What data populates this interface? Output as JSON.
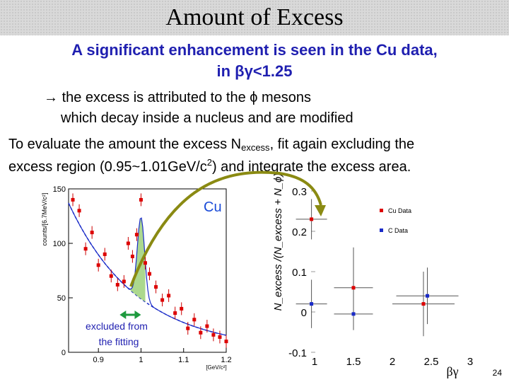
{
  "slide": {
    "title": "Amount of Excess",
    "headline_1": "A significant enhancement is seen in the Cu data,",
    "headline_2": "in βγ<1.25",
    "point_1": "the excess is attributed to the ϕ mesons",
    "point_2": "which decay inside a nucleus and are modified",
    "eval_1a": "To evaluate the amount the excess N",
    "eval_1sub": "excess",
    "eval_1b": ", fit again excluding the",
    "eval_2a": "excess region (0.95~1.01GeV/c",
    "eval_2sup": "2",
    "eval_2b": ") and integrate the excess area.",
    "arrow_glyph": "→",
    "page_number": "24"
  },
  "left_plot": {
    "label": "Cu",
    "ylabel": "counts/[6.7MeV/c²]",
    "xunit": "[GeV/c²]",
    "excluded_note_1": "excluded from",
    "excluded_note_2": "the fitting",
    "yticks": [
      "150",
      "100",
      "50",
      "0"
    ],
    "xticks": [
      "0.9",
      "1",
      "1.1",
      "1.2"
    ]
  },
  "right_plot": {
    "yticks": [
      "0.3",
      "0.2",
      "0.1",
      "0",
      "-0.1"
    ],
    "xticks": [
      "1",
      "1.5",
      "2",
      "2.5",
      "3"
    ],
    "legend": [
      "Cu Data",
      "C  Data"
    ],
    "xlabel": "βγ",
    "ylabel": "N_excess /(N_excess + N_ϕ)"
  },
  "chart_data": [
    {
      "type": "scatter",
      "title": "",
      "xlabel": "",
      "ylabel": "counts/[6.7MeV/c²]",
      "xlim": [
        0.83,
        1.2
      ],
      "ylim": [
        0,
        150
      ],
      "series": [
        {
          "name": "Cu",
          "x": [
            0.84,
            0.855,
            0.87,
            0.885,
            0.9,
            0.915,
            0.93,
            0.945,
            0.96,
            0.97,
            0.98,
            0.99,
            1.0,
            1.01,
            1.02,
            1.035,
            1.05,
            1.065,
            1.08,
            1.095,
            1.11,
            1.125,
            1.14,
            1.155,
            1.17,
            1.185,
            1.2
          ],
          "y": [
            140,
            130,
            95,
            110,
            80,
            90,
            70,
            62,
            65,
            100,
            88,
            108,
            140,
            82,
            72,
            60,
            48,
            52,
            36,
            40,
            22,
            30,
            18,
            24,
            16,
            14,
            10
          ]
        }
      ],
      "annotations": [
        "Cu",
        "excluded from the fitting"
      ]
    },
    {
      "type": "scatter",
      "title": "",
      "xlabel": "βγ",
      "ylabel": "N_excess /(N_excess + N_ϕ)",
      "xlim": [
        0.7,
        3.0
      ],
      "ylim": [
        -0.1,
        0.3
      ],
      "legend_position": "top-right",
      "series": [
        {
          "name": "Cu Data",
          "x": [
            0.96,
            1.5,
            2.4
          ],
          "y": [
            0.23,
            0.06,
            0.02
          ],
          "xerr": [
            0.2,
            0.25,
            0.4
          ],
          "yerr": [
            0.05,
            0.1,
            0.08
          ]
        },
        {
          "name": "C  Data",
          "x": [
            0.96,
            1.5,
            2.45
          ],
          "y": [
            0.02,
            -0.005,
            0.04
          ],
          "xerr": [
            0.2,
            0.25,
            0.4
          ],
          "yerr": [
            0.06,
            0.04,
            0.07
          ]
        }
      ]
    }
  ]
}
